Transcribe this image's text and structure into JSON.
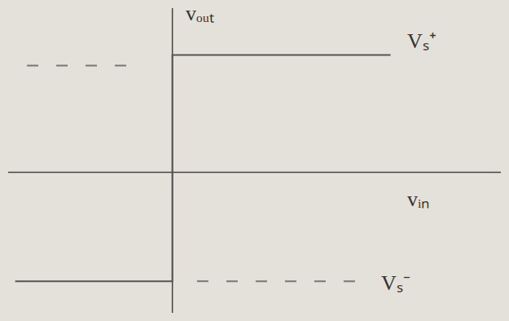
{
  "chart_data": {
    "type": "line",
    "xlabel": "vᵢₙ",
    "ylabel": "vₒᵤₜ",
    "annotations": [
      "Vₛ⁺",
      "Vₛ⁻"
    ],
    "xlim": [
      -1.4,
      2.8
    ],
    "ylim": [
      -1.2,
      1.4
    ],
    "tick_labels": false,
    "grid": false,
    "series": [
      {
        "color": "#555555",
        "line_style": "solid",
        "x": [
          -1.34,
          0,
          0,
          1.86
        ],
        "values": [
          -0.93,
          -0.93,
          1.0,
          1.0
        ]
      },
      {
        "color": "#777777",
        "line_style": "dashed",
        "x": [
          -1.24,
          -0.31
        ],
        "values": [
          0.91,
          0.91
        ]
      },
      {
        "color": "#777777",
        "line_style": "dashed",
        "x": [
          0.21,
          1.62
        ],
        "values": [
          -0.93,
          -0.93
        ]
      }
    ]
  }
}
